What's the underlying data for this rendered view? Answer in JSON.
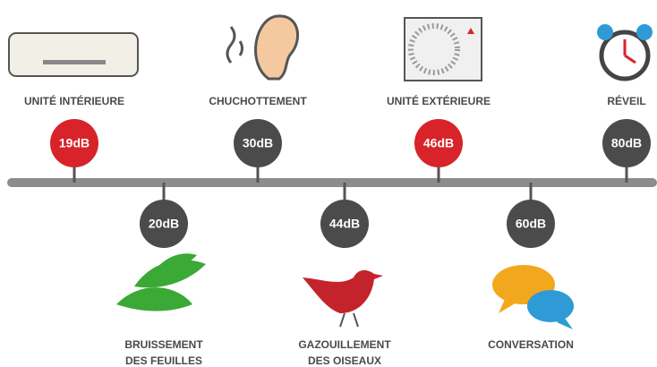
{
  "items": [
    {
      "label": [
        "UNITÉ INTÉRIEURE"
      ],
      "level": "19dB",
      "color": "#d8232a"
    },
    {
      "label": [
        "BRUISSEMENT",
        "DES FEUILLES"
      ],
      "level": "20dB",
      "color": "#4b4b4b"
    },
    {
      "label": [
        "CHUCHOTTEMENT"
      ],
      "level": "30dB",
      "color": "#4b4b4b"
    },
    {
      "label": [
        "GAZOUILLEMENT",
        "DES OISEAUX"
      ],
      "level": "44dB",
      "color": "#4b4b4b"
    },
    {
      "label": [
        "UNITÉ EXTÉRIEURE"
      ],
      "level": "46dB",
      "color": "#d8232a"
    },
    {
      "label": [
        "CONVERSATION"
      ],
      "level": "60dB",
      "color": "#4b4b4b"
    },
    {
      "label": [
        "RÉVEIL"
      ],
      "level": "80dB",
      "color": "#4b4b4b"
    }
  ]
}
